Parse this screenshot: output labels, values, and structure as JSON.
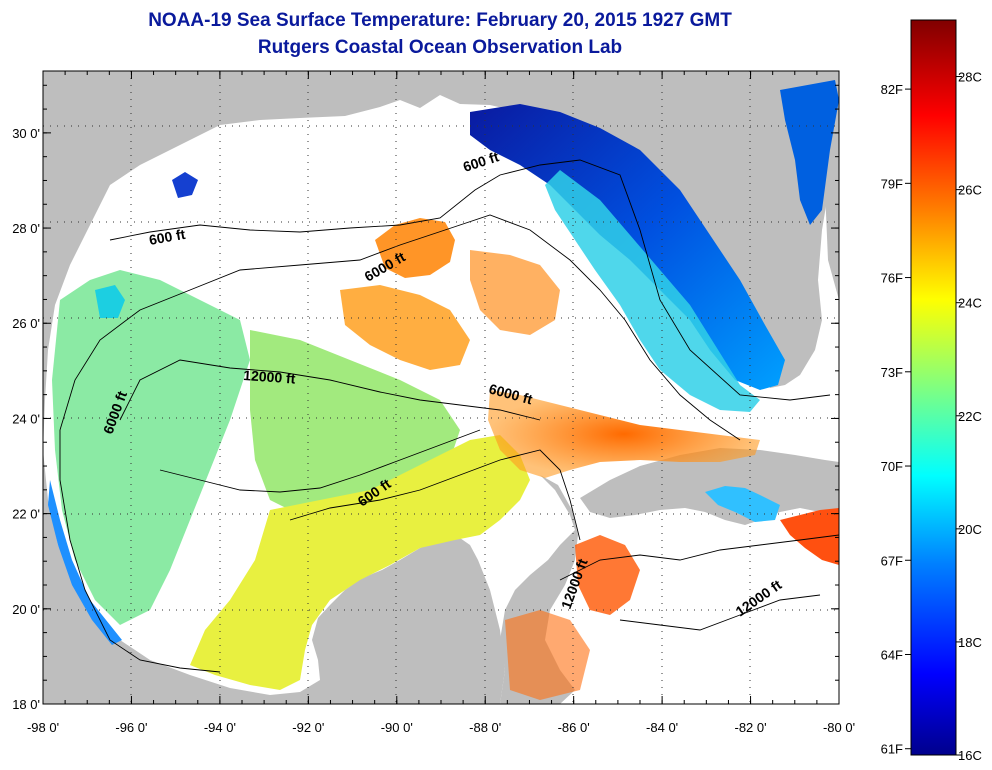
{
  "title": "NOAA-19 Sea Surface Temperature:  February 20, 2015 1927 GMT",
  "subtitle": "Rutgers Coastal Ocean Observation Lab",
  "map": {
    "lon_ticks": [
      "-98 0'",
      "-96 0'",
      "-94 0'",
      "-92 0'",
      "-90 0'",
      "-88 0'",
      "-86 0'",
      "-84 0'",
      "-82 0'",
      "-80 0'"
    ],
    "lat_ticks": [
      "30 0'",
      "28 0'",
      "26 0'",
      "24 0'",
      "22 0'",
      "20 0'",
      "18 0'"
    ],
    "lon_range": [
      -98,
      -80
    ],
    "lat_range": [
      18,
      31.3
    ],
    "colors": {
      "land": "#bebebe",
      "no_data": "#ffffff"
    },
    "contour_labels": [
      "600 ft",
      "600 ft",
      "6000 ft",
      "6000 ft",
      "6000 ft",
      "12000 ft",
      "600 ft",
      "12000 ft",
      "12000 ft"
    ]
  },
  "colorbar": {
    "fahrenheit_labels": [
      "82F",
      "79F",
      "76F",
      "73F",
      "70F",
      "67F",
      "64F",
      "61F"
    ],
    "celsius_labels": [
      "28C",
      "26C",
      "24C",
      "22C",
      "20C",
      "18C",
      "16C"
    ],
    "range_c": [
      16,
      29
    ],
    "colors": [
      "#00008c",
      "#0000ff",
      "#0080ff",
      "#00ffff",
      "#80ff80",
      "#ffff00",
      "#ff8000",
      "#ff0000",
      "#800000"
    ]
  }
}
